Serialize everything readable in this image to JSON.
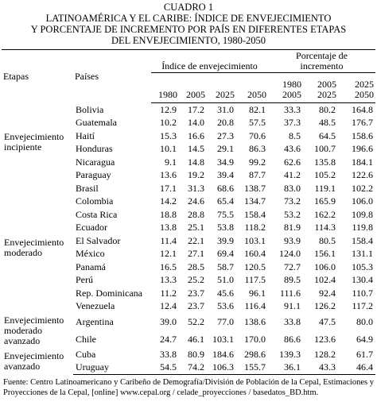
{
  "header": {
    "number": "CUADRO 1",
    "title_lines": [
      "LATINOAMÉRICA Y EL CARIBE: ÍNDICE DE ENVEJECIMIENTO",
      "Y PORCENTAJE DE INCREMENTO POR PAÍS EN DIFERENTES ETAPAS",
      "DEL ENVEJECIMIENTO, 1980-2050"
    ]
  },
  "table": {
    "columns": {
      "stage": "Etapas",
      "country": "Países",
      "index_group": "Índice de envejecimiento",
      "pct_group": [
        "Porcentaje de",
        "incremento"
      ],
      "index_years": [
        "1980",
        "2005",
        "2025",
        "2050"
      ],
      "pct_periods": [
        [
          "1980",
          "2005"
        ],
        [
          "2005",
          "2025"
        ],
        [
          "2025",
          "2050"
        ]
      ]
    },
    "groups": [
      {
        "label": "Envejecimiento incipiente",
        "rows": [
          {
            "country": "Bolivia",
            "values": [
              "12.9",
              "17.2",
              "31.0",
              "82.1",
              "33.3",
              "80.2",
              "164.8"
            ]
          },
          {
            "country": "Guatemala",
            "values": [
              "10.2",
              "14.0",
              "20.8",
              "57.5",
              "37.3",
              "48.5",
              "176.7"
            ]
          },
          {
            "country": "Haití",
            "values": [
              "15.3",
              "16.6",
              "27.3",
              "70.6",
              "8.5",
              "64.5",
              "158.6"
            ]
          },
          {
            "country": "Honduras",
            "values": [
              "10.1",
              "14.5",
              "29.1",
              "86.3",
              "43.6",
              "100.7",
              "196.6"
            ]
          },
          {
            "country": "Nicaragua",
            "values": [
              "9.1",
              "14.8",
              "34.9",
              "99.2",
              "62.6",
              "135.8",
              "184.1"
            ]
          },
          {
            "country": "Paraguay",
            "values": [
              "13.6",
              "19.2",
              "39.4",
              "87.7",
              "41.2",
              "105.2",
              "122.6"
            ]
          }
        ]
      },
      {
        "label": "Envejecimiento moderado",
        "rows": [
          {
            "country": "Brasil",
            "values": [
              "17.1",
              "31.3",
              "68.6",
              "138.7",
              "83.0",
              "119.1",
              "102.2"
            ]
          },
          {
            "country": "Colombia",
            "values": [
              "14.2",
              "24.6",
              "65.4",
              "134.7",
              "73.2",
              "165.9",
              "106.0"
            ]
          },
          {
            "country": "Costa Rica",
            "values": [
              "18.8",
              "28.8",
              "75.5",
              "158.4",
              "53.2",
              "162.2",
              "109.8"
            ]
          },
          {
            "country": "Ecuador",
            "values": [
              "13.8",
              "25.1",
              "53.8",
              "118.2",
              "81.9",
              "114.3",
              "119.8"
            ]
          },
          {
            "country": "El Salvador",
            "values": [
              "11.4",
              "22.1",
              "39.9",
              "103.1",
              "93.9",
              "80.5",
              "158.4"
            ]
          },
          {
            "country": "México",
            "values": [
              "12.1",
              "27.1",
              "69.4",
              "160.4",
              "124.0",
              "156.1",
              "131.1"
            ]
          },
          {
            "country": "Panamá",
            "values": [
              "16.5",
              "28.5",
              "58.7",
              "120.5",
              "72.7",
              "106.0",
              "105.3"
            ]
          },
          {
            "country": "Perú",
            "values": [
              "13.3",
              "25.2",
              "51.0",
              "117.5",
              "89.5",
              "102.4",
              "130.4"
            ]
          },
          {
            "country": "Rep. Dominicana",
            "values": [
              "11.2",
              "23.7",
              "45.6",
              "96.1",
              "111.6",
              "92.4",
              "110.7"
            ]
          },
          {
            "country": "Venezuela",
            "values": [
              "12.4",
              "23.7",
              "53.6",
              "116.4",
              "91.1",
              "126.2",
              "117.2"
            ]
          }
        ]
      },
      {
        "label": "Envejecimiento moderado avanzado",
        "rows": [
          {
            "country": "Argentina",
            "values": [
              "39.0",
              "52.2",
              "77.0",
              "138.6",
              "33.8",
              "47.5",
              "80.0"
            ]
          },
          {
            "country": "Chile",
            "values": [
              "24.7",
              "46.1",
              "103.1",
              "170.0",
              "86.6",
              "123.6",
              "64.9"
            ]
          }
        ]
      },
      {
        "label": "Envejecimiento avanzado",
        "rows": [
          {
            "country": "Cuba",
            "values": [
              "33.8",
              "80.9",
              "184.6",
              "298.6",
              "139.3",
              "128.2",
              "61.7"
            ]
          },
          {
            "country": "Uruguay",
            "values": [
              "54.5",
              "74.2",
              "106.3",
              "155.7",
              "36.1",
              "43.3",
              "46.4"
            ]
          }
        ]
      }
    ]
  },
  "footer": {
    "source": "Fuente: Centro Latinoamericano y Caribeño de Demografía/División de Población de la Cepal, Estimaciones y Proyecciones de la Cepal, [online] www.cepal.org / celade_proyecciones / basedatos_BD.htm."
  }
}
